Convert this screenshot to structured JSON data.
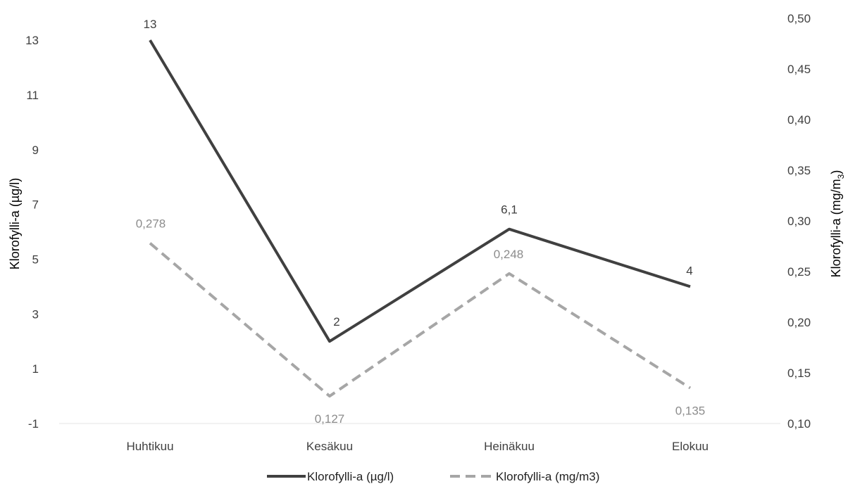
{
  "chart_data": {
    "type": "line",
    "categories": [
      "Huhtikuu",
      "Kesäkuu",
      "Heinäkuu",
      "Elokuu"
    ],
    "y_left": {
      "label": "Klorofylli-a (µg/l)",
      "ticks": [
        "-1",
        "1",
        "3",
        "5",
        "7",
        "9",
        "11",
        "13"
      ],
      "range": [
        -1,
        13.8
      ]
    },
    "y_right": {
      "label_main": "Klorofylli-a (mg/m",
      "label_sub": "3",
      "label_end": ")",
      "ticks": [
        "0,10",
        "0,15",
        "0,20",
        "0,25",
        "0,30",
        "0,35",
        "0,40",
        "0,45",
        "0,50"
      ],
      "range": [
        0.1,
        0.5
      ]
    },
    "series": [
      {
        "name": "Klorofylli-a (µg/l)",
        "axis": "left",
        "values": [
          13,
          2,
          6.1,
          4
        ],
        "labels": [
          "13",
          "2",
          "6,1",
          "4"
        ],
        "color": "#404040",
        "dashed": false
      },
      {
        "name": "Klorofylli-a (mg/m3)",
        "axis": "right",
        "values": [
          0.278,
          0.127,
          0.248,
          0.135
        ],
        "labels": [
          "0,278",
          "0,127",
          "0,248",
          "0,135"
        ],
        "color": "#a6a6a6",
        "dashed": true
      }
    ],
    "legend_position": "bottom",
    "grid": false
  }
}
